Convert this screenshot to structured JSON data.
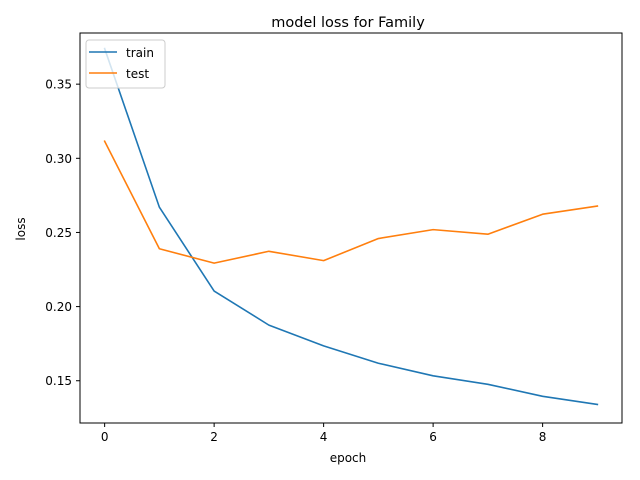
{
  "chart_data": {
    "type": "line",
    "title": "model loss for Family",
    "xlabel": "epoch",
    "ylabel": "loss",
    "x": [
      0,
      1,
      2,
      3,
      4,
      5,
      6,
      7,
      8,
      9
    ],
    "xlim": [
      -0.45,
      9.45
    ],
    "ylim": [
      0.1215,
      0.3845
    ],
    "xticks": [
      0,
      2,
      4,
      6,
      8
    ],
    "xtick_labels": [
      "0",
      "2",
      "4",
      "6",
      "8"
    ],
    "yticks": [
      0.15,
      0.2,
      0.25,
      0.3,
      0.35
    ],
    "ytick_labels": [
      "0.15",
      "0.20",
      "0.25",
      "0.30",
      "0.35"
    ],
    "grid": false,
    "legend_position": "upper-left",
    "series": [
      {
        "name": "train",
        "color": "#1f77b4",
        "values": [
          0.374,
          0.267,
          0.2105,
          0.1875,
          0.1735,
          0.1618,
          0.1533,
          0.1476,
          0.1395,
          0.134
        ]
      },
      {
        "name": "test",
        "color": "#ff7f0e",
        "values": [
          0.3115,
          0.239,
          0.2293,
          0.2373,
          0.231,
          0.2459,
          0.2519,
          0.2488,
          0.2623,
          0.2678
        ]
      }
    ]
  }
}
